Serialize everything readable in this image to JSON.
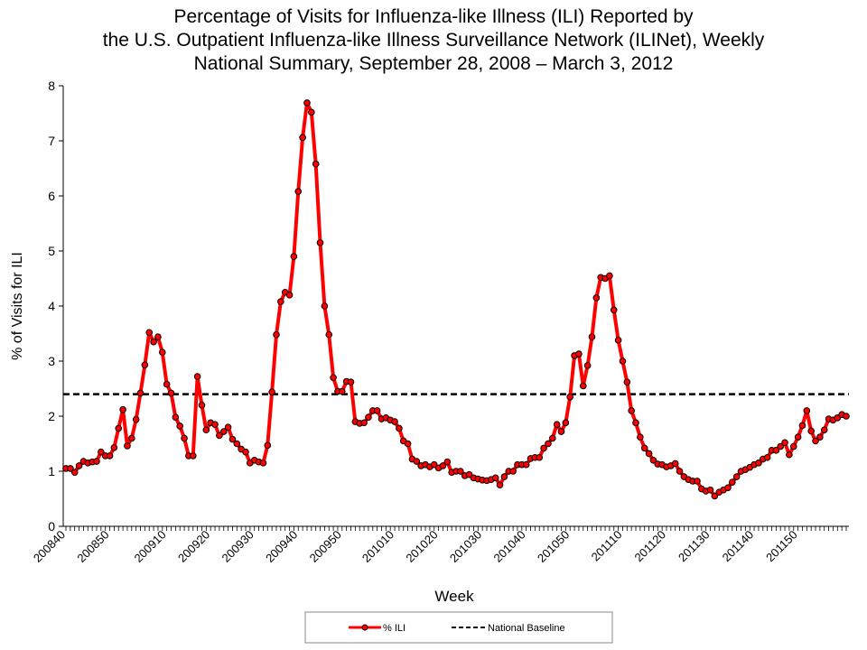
{
  "chart_data": {
    "type": "line",
    "title": [
      "Percentage of Visits for Influenza-like Illness (ILI) Reported by",
      "the U.S. Outpatient Influenza-like Illness Surveillance Network (ILINet), Weekly",
      "National Summary, September 28, 2008 – March 3, 2012"
    ],
    "xlabel": "Week",
    "ylabel": "% of Visits for ILI",
    "ylim": [
      0,
      8
    ],
    "yticks": [
      "0",
      "1",
      "2",
      "3",
      "4",
      "5",
      "6",
      "7",
      "8"
    ],
    "xtick_labels": [
      "200840",
      "200850",
      "200910",
      "200920",
      "200930",
      "200940",
      "200950",
      "201010",
      "201020",
      "201030",
      "201040",
      "201050",
      "201110",
      "201120",
      "201130",
      "201140",
      "201150"
    ],
    "legend_position": "bottom",
    "grid": false,
    "weeks_per_year": {
      "2008": 53,
      "2009": 52,
      "2010": 52,
      "2011": 52
    },
    "x_start": "200840",
    "x_end": "201209",
    "series": [
      {
        "name": "% ILI",
        "color": "#ff0000",
        "marker_color": "#ff0000",
        "values": [
          1.05,
          1.05,
          0.98,
          1.1,
          1.18,
          1.15,
          1.17,
          1.18,
          1.35,
          1.28,
          1.28,
          1.43,
          1.78,
          2.12,
          1.46,
          1.6,
          1.94,
          2.42,
          2.93,
          3.52,
          3.35,
          3.44,
          3.16,
          2.58,
          2.42,
          1.98,
          1.82,
          1.6,
          1.28,
          1.28,
          2.72,
          2.2,
          1.75,
          1.88,
          1.85,
          1.65,
          1.72,
          1.8,
          1.58,
          1.5,
          1.4,
          1.35,
          1.15,
          1.2,
          1.17,
          1.15,
          1.47,
          2.44,
          3.48,
          4.08,
          4.25,
          4.2,
          4.9,
          6.08,
          7.06,
          7.69,
          7.52,
          6.58,
          5.15,
          4.0,
          3.48,
          2.7,
          2.45,
          2.45,
          2.63,
          2.62,
          1.9,
          1.87,
          1.88,
          1.98,
          2.1,
          2.1,
          1.95,
          1.97,
          1.93,
          1.9,
          1.78,
          1.55,
          1.5,
          1.22,
          1.18,
          1.1,
          1.12,
          1.08,
          1.12,
          1.06,
          1.1,
          1.17,
          0.98,
          1.0,
          1.0,
          0.92,
          0.94,
          0.88,
          0.86,
          0.84,
          0.83,
          0.85,
          0.88,
          0.75,
          0.9,
          1.0,
          1.0,
          1.12,
          1.12,
          1.12,
          1.23,
          1.25,
          1.25,
          1.42,
          1.5,
          1.6,
          1.85,
          1.72,
          1.88,
          2.35,
          3.1,
          3.13,
          2.55,
          2.92,
          3.44,
          4.15,
          4.52,
          4.5,
          4.55,
          3.93,
          3.38,
          3.0,
          2.62,
          2.1,
          1.88,
          1.62,
          1.42,
          1.32,
          1.2,
          1.13,
          1.12,
          1.08,
          1.1,
          1.14,
          1.0,
          0.9,
          0.85,
          0.82,
          0.82,
          0.68,
          0.64,
          0.66,
          0.55,
          0.62,
          0.66,
          0.7,
          0.8,
          0.9,
          1.0,
          1.03,
          1.07,
          1.12,
          1.15,
          1.22,
          1.25,
          1.38,
          1.38,
          1.45,
          1.52,
          1.3,
          1.45,
          1.62,
          1.83,
          2.1,
          1.73,
          1.55,
          1.62,
          1.75,
          1.95,
          1.93,
          1.97,
          2.03,
          2.0
        ]
      },
      {
        "name": "National Baseline",
        "color": "#000000",
        "style": "dashed",
        "value": 2.4
      }
    ]
  }
}
